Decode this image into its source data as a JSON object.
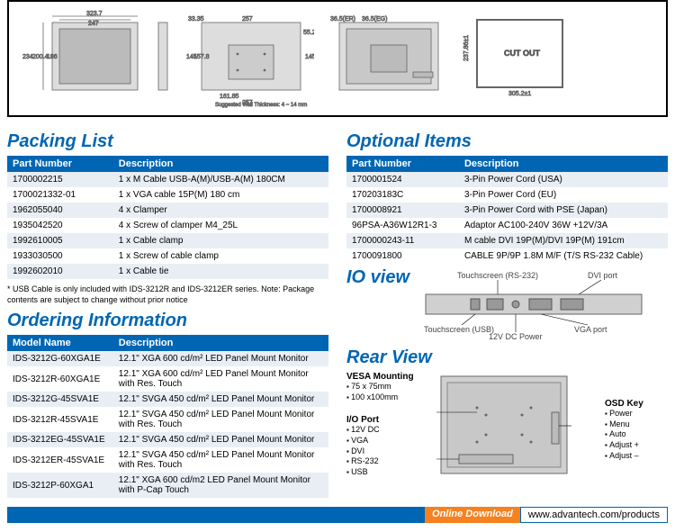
{
  "diagram": {
    "dims": {
      "front_w": "323.7",
      "front_inner_w": "247",
      "front_h": "234",
      "front_inner_h": "186",
      "front_h2": "200.4",
      "side_d": "33.35",
      "rear_w": "257",
      "rear_h": "145",
      "rear_h2": "157.8",
      "rear_w2": "161.85",
      "rear_h3": "55.2",
      "er": "36.5(ER)",
      "eg": "36.5(EG)",
      "cutout_w": "305.2±1",
      "cutout_h": "237.86±1",
      "cutout_label": "CUT OUT"
    },
    "note": "Suggested Wall Thickness: 4 ~ 14 mm"
  },
  "packing": {
    "title": "Packing List",
    "headers": [
      "Part Number",
      "Description"
    ],
    "rows": [
      [
        "1700002215",
        "1 x M Cable USB-A(M)/USB-A(M) 180CM"
      ],
      [
        "1700021332-01",
        "1 x VGA cable 15P(M) 180 cm"
      ],
      [
        "1962055040",
        "4 x Clamper"
      ],
      [
        "1935042520",
        "4 x Screw of clamper M4_25L"
      ],
      [
        "1992610005",
        "1 x Cable clamp"
      ],
      [
        "1933030500",
        "1 x Screw of cable clamp"
      ],
      [
        "1992602010",
        "1 x Cable tie"
      ]
    ],
    "footnote": "* USB Cable is only included with IDS-3212R and IDS-3212ER series. Note: Package contents are subject to change without prior notice"
  },
  "optional": {
    "title": "Optional Items",
    "headers": [
      "Part Number",
      "Description"
    ],
    "rows": [
      [
        "1700001524",
        "3-Pin Power Cord (USA)"
      ],
      [
        "170203183C",
        "3-Pin Power Cord  (EU)"
      ],
      [
        "1700008921",
        "3-Pin Power Cord with PSE (Japan)"
      ],
      [
        "96PSA-A36W12R1-3",
        "Adaptor AC100-240V 36W +12V/3A"
      ],
      [
        "1700000243-11",
        "M cable DVI 19P(M)/DVI 19P(M) 191cm"
      ],
      [
        "1700091800",
        "CABLE 9P/9P 1.8M M/F (T/S RS-232 Cable)"
      ]
    ]
  },
  "ordering": {
    "title": "Ordering Information",
    "headers": [
      "Model Name",
      "Description"
    ],
    "rows": [
      [
        "IDS-3212G-60XGA1E",
        "12.1\" XGA 600 cd/m² LED Panel Mount Monitor"
      ],
      [
        "IDS-3212R-60XGA1E",
        "12.1\" XGA 600 cd/m² LED Panel Mount Monitor with Res. Touch"
      ],
      [
        "IDS-3212G-45SVA1E",
        "12.1\" SVGA 450 cd/m² LED Panel Mount Monitor"
      ],
      [
        "IDS-3212R-45SVA1E",
        "12.1\" SVGA 450 cd/m² LED Panel Mount Monitor with Res. Touch"
      ],
      [
        "IDS-3212EG-45SVA1E",
        "12.1\" SVGA 450 cd/m² LED Panel Mount Monitor"
      ],
      [
        "IDS-3212ER-45SVA1E",
        "12.1\" SVGA 450 cd/m² LED Panel Mount Monitor with Res. Touch"
      ],
      [
        "IDS-3212P-60XGA1",
        "12.1\" XGA 600 cd/m2 LED Panel Mount Monitor with P-Cap Touch"
      ]
    ]
  },
  "io_view": {
    "title": "IO view",
    "labels": {
      "ts_rs232": "Touchscreen (RS-232)",
      "dvi": "DVI port",
      "ts_usb": "Touchscreen (USB)",
      "vga": "VGA port",
      "power": "12V DC Power"
    }
  },
  "rear_view": {
    "title": "Rear View",
    "vesa": {
      "header": "VESA Mounting",
      "items": [
        "75 x 75mm",
        "100 x100mm"
      ]
    },
    "io_port": {
      "header": "I/O Port",
      "items": [
        "12V DC",
        "VGA",
        "DVI",
        "RS-232",
        "USB"
      ]
    },
    "osd": {
      "header": "OSD Key",
      "items": [
        "Power",
        "Menu",
        "Auto",
        "Adjust +",
        "Adjust –"
      ]
    }
  },
  "footer": {
    "download": "Online Download",
    "url": "www.advantech.com/products"
  }
}
